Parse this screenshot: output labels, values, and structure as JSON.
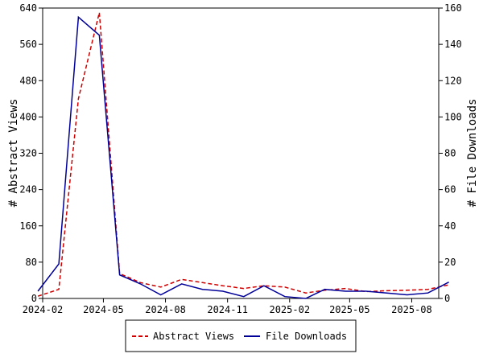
{
  "chart_data": {
    "type": "line",
    "x": [
      "2024-01-25",
      "2024-02-25",
      "2024-03-25",
      "2024-04-25",
      "2024-05-25",
      "2024-06-25",
      "2024-07-25",
      "2024-08-25",
      "2024-09-25",
      "2024-10-25",
      "2024-11-25",
      "2024-12-25",
      "2025-01-25",
      "2025-02-25",
      "2025-03-25",
      "2025-04-25",
      "2025-05-25",
      "2025-06-25",
      "2025-07-25",
      "2025-08-25",
      "2025-09-25"
    ],
    "xlim": [
      "2024-02-01",
      "2025-09-10"
    ],
    "xticks": [
      "2024-02",
      "2024-05",
      "2024-08",
      "2024-11",
      "2025-02",
      "2025-05",
      "2025-08"
    ],
    "series": [
      {
        "name": "Abstract Views",
        "axis": "left",
        "color": "#cc0000",
        "dash": "dashed",
        "values": [
          5,
          20,
          440,
          630,
          55,
          35,
          25,
          42,
          35,
          28,
          22,
          28,
          25,
          12,
          18,
          22,
          15,
          17,
          18,
          20,
          30
        ]
      },
      {
        "name": "File Downloads",
        "axis": "right",
        "color": "#000099",
        "dash": "solid",
        "values": [
          4,
          19,
          155,
          145,
          13,
          8,
          2,
          8,
          5,
          4,
          1,
          7,
          1,
          0,
          5,
          4,
          4,
          3,
          2,
          3,
          9
        ]
      }
    ],
    "ylabel_left": "# Abstract Views",
    "ylabel_right": "# File Downloads",
    "ylim_left": [
      0,
      640
    ],
    "ylim_right": [
      0,
      160
    ],
    "yticks_left": [
      "0",
      "80",
      "160",
      "240",
      "320",
      "400",
      "480",
      "560",
      "640"
    ],
    "yticks_right": [
      "0",
      "20",
      "40",
      "60",
      "80",
      "100",
      "120",
      "140",
      "160"
    ],
    "grid": false,
    "legend_placement": "bottom-center"
  }
}
